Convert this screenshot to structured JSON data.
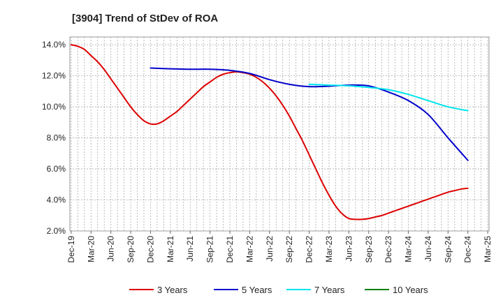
{
  "chart_data": {
    "type": "line",
    "title": "[3904]  Trend of StDev of ROA",
    "xlabel": "",
    "ylabel": "",
    "x_ticks": [
      "Dec-19",
      "Mar-20",
      "Jun-20",
      "Sep-20",
      "Dec-20",
      "Mar-21",
      "Jun-21",
      "Sep-21",
      "Dec-21",
      "Mar-22",
      "Jun-22",
      "Sep-22",
      "Dec-22",
      "Mar-23",
      "Jun-23",
      "Sep-23",
      "Dec-23",
      "Mar-24",
      "Jun-24",
      "Sep-24",
      "Dec-24",
      "Mar-25"
    ],
    "y_ticks": [
      "2.0%",
      "4.0%",
      "6.0%",
      "8.0%",
      "10.0%",
      "12.0%",
      "14.0%"
    ],
    "ylim": [
      2.0,
      14.5
    ],
    "grid": true,
    "legend_position": "bottom",
    "series": [
      {
        "name": "3 Years",
        "color": "#dd0000",
        "points": [
          [
            "Dec-19",
            14.0
          ],
          [
            "Jan-20",
            13.9
          ],
          [
            "Feb-20",
            13.7
          ],
          [
            "Mar-20",
            13.3
          ],
          [
            "Apr-20",
            12.9
          ],
          [
            "May-20",
            12.4
          ],
          [
            "Jun-20",
            11.8
          ],
          [
            "Jul-20",
            11.2
          ],
          [
            "Aug-20",
            10.6
          ],
          [
            "Sep-20",
            10.0
          ],
          [
            "Oct-20",
            9.5
          ],
          [
            "Nov-20",
            9.1
          ],
          [
            "Dec-20",
            8.9
          ],
          [
            "Jan-21",
            8.9
          ],
          [
            "Feb-21",
            9.1
          ],
          [
            "Mar-21",
            9.4
          ],
          [
            "Apr-21",
            9.7
          ],
          [
            "May-21",
            10.1
          ],
          [
            "Jun-21",
            10.5
          ],
          [
            "Jul-21",
            10.9
          ],
          [
            "Aug-21",
            11.3
          ],
          [
            "Sep-21",
            11.6
          ],
          [
            "Oct-21",
            11.9
          ],
          [
            "Nov-21",
            12.1
          ],
          [
            "Dec-21",
            12.2
          ],
          [
            "Jan-22",
            12.25
          ],
          [
            "Feb-22",
            12.2
          ],
          [
            "Mar-22",
            12.1
          ],
          [
            "Apr-22",
            11.9
          ],
          [
            "May-22",
            11.6
          ],
          [
            "Jun-22",
            11.2
          ],
          [
            "Jul-22",
            10.7
          ],
          [
            "Aug-22",
            10.1
          ],
          [
            "Sep-22",
            9.4
          ],
          [
            "Oct-22",
            8.6
          ],
          [
            "Nov-22",
            7.8
          ],
          [
            "Dec-22",
            6.9
          ],
          [
            "Jan-23",
            6.0
          ],
          [
            "Feb-23",
            5.1
          ],
          [
            "Mar-23",
            4.3
          ],
          [
            "Apr-23",
            3.6
          ],
          [
            "May-23",
            3.1
          ],
          [
            "Jun-23",
            2.8
          ],
          [
            "Jul-23",
            2.75
          ],
          [
            "Aug-23",
            2.75
          ],
          [
            "Sep-23",
            2.8
          ],
          [
            "Oct-23",
            2.9
          ],
          [
            "Nov-23",
            3.0
          ],
          [
            "Dec-23",
            3.15
          ],
          [
            "Jan-24",
            3.3
          ],
          [
            "Feb-24",
            3.45
          ],
          [
            "Mar-24",
            3.6
          ],
          [
            "Apr-24",
            3.75
          ],
          [
            "May-24",
            3.9
          ],
          [
            "Jun-24",
            4.05
          ],
          [
            "Jul-24",
            4.2
          ],
          [
            "Aug-24",
            4.35
          ],
          [
            "Sep-24",
            4.5
          ],
          [
            "Oct-24",
            4.6
          ],
          [
            "Nov-24",
            4.7
          ],
          [
            "Dec-24",
            4.75
          ]
        ]
      },
      {
        "name": "5 Years",
        "color": "#0000cc",
        "points": [
          [
            "Dec-20",
            12.5
          ],
          [
            "Mar-21",
            12.45
          ],
          [
            "Jun-21",
            12.42
          ],
          [
            "Sep-21",
            12.42
          ],
          [
            "Dec-21",
            12.35
          ],
          [
            "Mar-22",
            12.15
          ],
          [
            "Jun-22",
            11.75
          ],
          [
            "Sep-22",
            11.45
          ],
          [
            "Dec-22",
            11.3
          ],
          [
            "Mar-23",
            11.33
          ],
          [
            "Jun-23",
            11.4
          ],
          [
            "Sep-23",
            11.35
          ],
          [
            "Dec-23",
            10.95
          ],
          [
            "Mar-24",
            10.4
          ],
          [
            "Jun-24",
            9.5
          ],
          [
            "Sep-24",
            8.0
          ],
          [
            "Dec-24",
            6.55
          ]
        ]
      },
      {
        "name": "7 Years",
        "color": "#00e5ee",
        "points": [
          [
            "Dec-22",
            11.45
          ],
          [
            "Mar-23",
            11.4
          ],
          [
            "Jun-23",
            11.35
          ],
          [
            "Sep-23",
            11.25
          ],
          [
            "Dec-23",
            11.1
          ],
          [
            "Mar-24",
            10.8
          ],
          [
            "Jun-24",
            10.4
          ],
          [
            "Sep-24",
            10.0
          ],
          [
            "Dec-24",
            9.75
          ]
        ]
      },
      {
        "name": "10 Years",
        "color": "#008000",
        "points": []
      }
    ]
  }
}
